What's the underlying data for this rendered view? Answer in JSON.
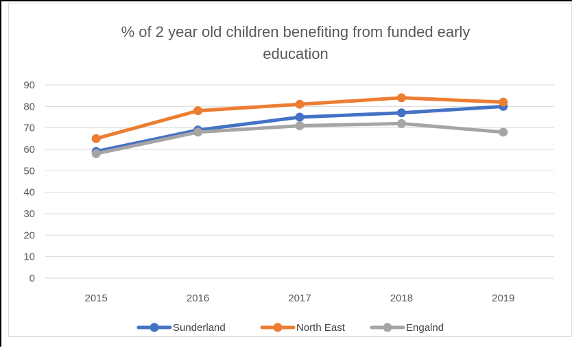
{
  "chart_data": {
    "type": "line",
    "title_lines": [
      "% of 2 year old children benefiting from funded early",
      "education"
    ],
    "categories": [
      "2015",
      "2016",
      "2017",
      "2018",
      "2019"
    ],
    "ylim": [
      0,
      90
    ],
    "yticks": [
      "0",
      "10",
      "20",
      "30",
      "40",
      "50",
      "60",
      "70",
      "80",
      "90"
    ],
    "grid": true,
    "legend_position": "bottom",
    "series": [
      {
        "name": "Sunderland",
        "color": "#4472c4",
        "values": [
          59,
          69,
          75,
          77,
          80
        ]
      },
      {
        "name": "North East",
        "color": "#ed7d31",
        "values": [
          65,
          78,
          81,
          84,
          82
        ]
      },
      {
        "name": "Engalnd",
        "color": "#a5a5a5",
        "values": [
          58,
          68,
          71,
          72,
          68
        ]
      }
    ]
  }
}
